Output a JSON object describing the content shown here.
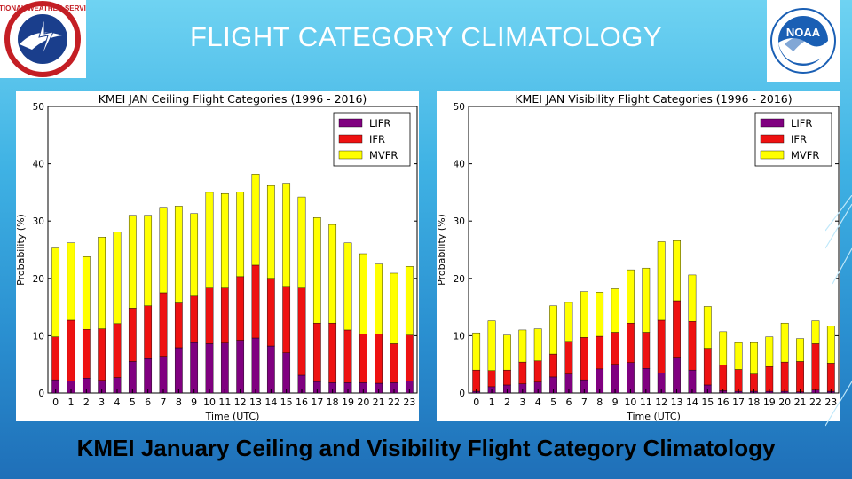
{
  "slide": {
    "title": "FLIGHT CATEGORY CLIMATOLOGY",
    "caption": "KMEI January Ceiling and Visibility Flight Category Climatology",
    "background_top": "#6fd3f2",
    "background_bottom": "#1f6fb8"
  },
  "logos": {
    "nws": {
      "icon": "nws-logo-icon",
      "text": "NATIONAL WEATHER SERVICE"
    },
    "noaa": {
      "icon": "noaa-logo-icon",
      "text": "NOAA"
    }
  },
  "chart_data": [
    {
      "type": "bar",
      "stacked": true,
      "title": "KMEI JAN Ceiling Flight Categories (1996 - 2016)",
      "xlabel": "Time (UTC)",
      "ylabel": "Probability (%)",
      "ylim": [
        0,
        50
      ],
      "yticks": [
        0,
        10,
        20,
        30,
        40,
        50
      ],
      "categories": [
        "0",
        "1",
        "2",
        "3",
        "4",
        "5",
        "6",
        "7",
        "8",
        "9",
        "10",
        "11",
        "12",
        "13",
        "14",
        "15",
        "16",
        "17",
        "18",
        "19",
        "20",
        "21",
        "22",
        "23"
      ],
      "legend_position": "top-right",
      "series": [
        {
          "name": "LIFR",
          "color": "#800080",
          "values": [
            2.3,
            2.1,
            2.6,
            2.2,
            2.7,
            5.5,
            6.0,
            6.4,
            7.9,
            8.8,
            8.6,
            8.7,
            9.2,
            9.6,
            8.2,
            7.0,
            3.1,
            2.0,
            1.8,
            1.8,
            1.8,
            1.7,
            1.8,
            2.1
          ]
        },
        {
          "name": "IFR",
          "color": "#ee1111",
          "values": [
            7.5,
            10.6,
            8.5,
            9.0,
            9.4,
            9.3,
            9.2,
            11.1,
            7.8,
            8.1,
            9.7,
            9.6,
            11.1,
            12.7,
            11.8,
            11.6,
            15.2,
            10.2,
            10.4,
            9.2,
            8.5,
            8.6,
            6.8,
            8.0
          ]
        },
        {
          "name": "MVFR",
          "color": "#ffff00",
          "values": [
            15.5,
            13.5,
            12.7,
            16.0,
            16.0,
            16.2,
            15.8,
            14.9,
            16.9,
            14.4,
            16.7,
            16.5,
            14.8,
            15.9,
            16.2,
            18.0,
            15.9,
            18.4,
            17.2,
            15.2,
            14.0,
            12.2,
            12.3,
            12.0
          ]
        }
      ]
    },
    {
      "type": "bar",
      "stacked": true,
      "title": "KMEI JAN Visibility Flight Categories (1996 - 2016)",
      "xlabel": "Time (UTC)",
      "ylabel": "Probability (%)",
      "ylim": [
        0,
        50
      ],
      "yticks": [
        0,
        10,
        20,
        30,
        40,
        50
      ],
      "categories": [
        "0",
        "1",
        "2",
        "3",
        "4",
        "5",
        "6",
        "7",
        "8",
        "9",
        "10",
        "11",
        "12",
        "13",
        "14",
        "15",
        "16",
        "17",
        "18",
        "19",
        "20",
        "21",
        "22",
        "23"
      ],
      "legend_position": "top-right",
      "series": [
        {
          "name": "LIFR",
          "color": "#800080",
          "values": [
            0.3,
            1.1,
            1.4,
            1.6,
            1.9,
            2.8,
            3.3,
            2.3,
            4.2,
            5.0,
            5.3,
            4.3,
            3.5,
            6.1,
            4.0,
            1.4,
            0.4,
            0.3,
            0.3,
            0.3,
            0.3,
            0.2,
            0.5,
            0.3
          ]
        },
        {
          "name": "IFR",
          "color": "#ee1111",
          "values": [
            3.7,
            2.8,
            2.6,
            3.8,
            3.7,
            4.0,
            5.7,
            7.4,
            5.7,
            5.6,
            6.9,
            6.3,
            9.2,
            10.0,
            8.5,
            6.4,
            4.5,
            3.8,
            3.0,
            4.3,
            5.1,
            5.3,
            8.1,
            4.9
          ]
        },
        {
          "name": "MVFR",
          "color": "#ffff00",
          "values": [
            6.5,
            8.7,
            6.1,
            5.6,
            5.6,
            8.4,
            6.8,
            8.0,
            7.7,
            7.6,
            9.3,
            11.2,
            13.7,
            10.5,
            8.1,
            7.3,
            5.8,
            4.7,
            5.5,
            5.2,
            6.8,
            4.0,
            4.0,
            6.5
          ]
        }
      ]
    }
  ]
}
